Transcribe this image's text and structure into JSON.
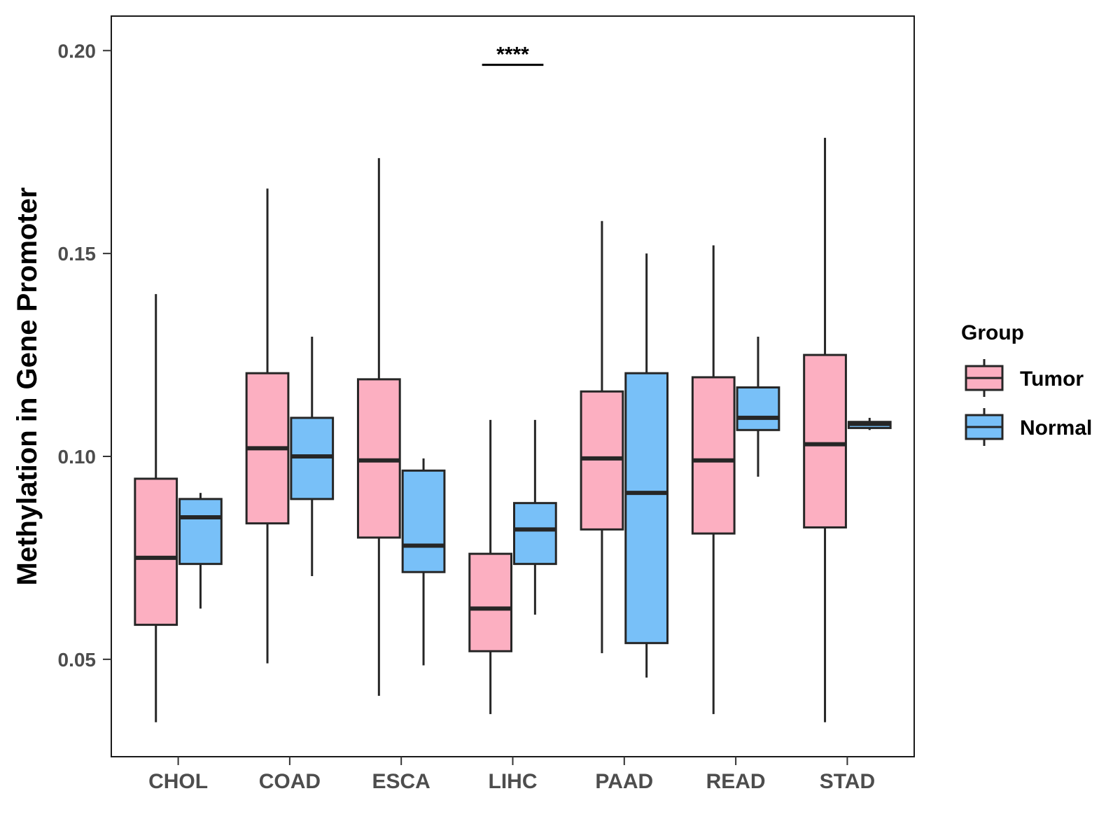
{
  "chart_data": {
    "type": "boxplot",
    "ylabel": "Methylation in Gene Promoter",
    "xlabel": "",
    "ylim": [
      0.026,
      0.2085
    ],
    "yticks": [
      0.05,
      0.1,
      0.15,
      0.2
    ],
    "ytick_labels": [
      "0.05",
      "0.10",
      "0.15",
      "0.20"
    ],
    "categories": [
      "CHOL",
      "COAD",
      "ESCA",
      "LIHC",
      "PAAD",
      "READ",
      "STAD"
    ],
    "legend": {
      "title": "Group",
      "position": "right",
      "entries": [
        {
          "name": "Tumor",
          "color": "#fcafc1"
        },
        {
          "name": "Normal",
          "color": "#78c0f8"
        }
      ]
    },
    "series": [
      {
        "name": "Tumor",
        "color": "#fcafc1",
        "boxes": [
          {
            "category": "CHOL",
            "whisker_low": 0.0345,
            "q1": 0.0585,
            "median": 0.075,
            "q3": 0.0945,
            "whisker_high": 0.14
          },
          {
            "category": "COAD",
            "whisker_low": 0.049,
            "q1": 0.0835,
            "median": 0.102,
            "q3": 0.1205,
            "whisker_high": 0.166
          },
          {
            "category": "ESCA",
            "whisker_low": 0.041,
            "q1": 0.08,
            "median": 0.099,
            "q3": 0.119,
            "whisker_high": 0.1735
          },
          {
            "category": "LIHC",
            "whisker_low": 0.0365,
            "q1": 0.052,
            "median": 0.0625,
            "q3": 0.076,
            "whisker_high": 0.109
          },
          {
            "category": "PAAD",
            "whisker_low": 0.0515,
            "q1": 0.082,
            "median": 0.0995,
            "q3": 0.116,
            "whisker_high": 0.158
          },
          {
            "category": "READ",
            "whisker_low": 0.0365,
            "q1": 0.081,
            "median": 0.099,
            "q3": 0.1195,
            "whisker_high": 0.152
          },
          {
            "category": "STAD",
            "whisker_low": 0.0345,
            "q1": 0.0825,
            "median": 0.103,
            "q3": 0.125,
            "whisker_high": 0.1785
          }
        ]
      },
      {
        "name": "Normal",
        "color": "#78c0f8",
        "boxes": [
          {
            "category": "CHOL",
            "whisker_low": 0.0625,
            "q1": 0.0735,
            "median": 0.085,
            "q3": 0.0895,
            "whisker_high": 0.091
          },
          {
            "category": "COAD",
            "whisker_low": 0.0705,
            "q1": 0.0895,
            "median": 0.1,
            "q3": 0.1095,
            "whisker_high": 0.1295
          },
          {
            "category": "ESCA",
            "whisker_low": 0.0485,
            "q1": 0.0715,
            "median": 0.078,
            "q3": 0.0965,
            "whisker_high": 0.0995
          },
          {
            "category": "LIHC",
            "whisker_low": 0.061,
            "q1": 0.0735,
            "median": 0.082,
            "q3": 0.0885,
            "whisker_high": 0.109
          },
          {
            "category": "PAAD",
            "whisker_low": 0.0455,
            "q1": 0.054,
            "median": 0.091,
            "q3": 0.1205,
            "whisker_high": 0.15
          },
          {
            "category": "READ",
            "whisker_low": 0.095,
            "q1": 0.1065,
            "median": 0.1095,
            "q3": 0.117,
            "whisker_high": 0.1295
          },
          {
            "category": "STAD",
            "whisker_low": 0.1065,
            "q1": 0.107,
            "median": 0.108,
            "q3": 0.1085,
            "whisker_high": 0.1095
          }
        ]
      }
    ],
    "annotations": [
      {
        "category": "LIHC",
        "text": "****",
        "y": 0.1965
      }
    ]
  }
}
